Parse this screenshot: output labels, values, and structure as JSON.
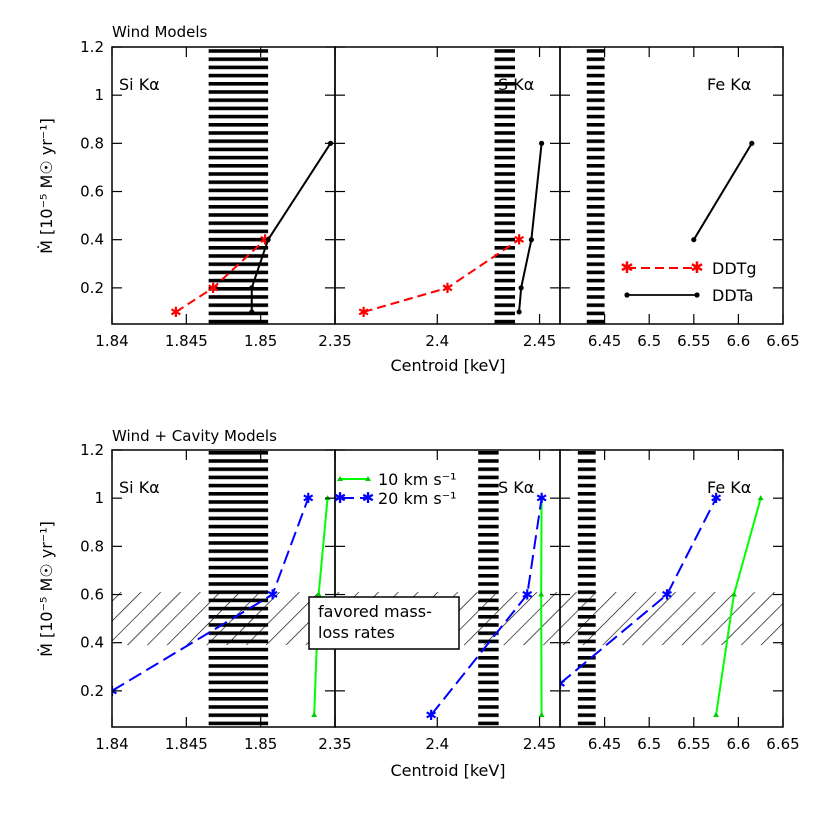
{
  "chart_data": [
    {
      "type": "line",
      "title": "Wind Models",
      "xlabel": "Centroid [keV]",
      "ylabel": "Ṁ [10⁻⁵ M☉ yr⁻¹]",
      "ylim": [
        0.05,
        1.2
      ],
      "yticks": [
        "0.2",
        "0.4",
        "0.6",
        "0.8",
        "1",
        "1.2"
      ],
      "yticks_values": [
        0.2,
        0.4,
        0.6,
        0.8,
        1.0,
        1.2
      ],
      "legend": [
        {
          "name": "DDTg",
          "color": "#ff0000",
          "style": "dashed",
          "marker": "asterisk"
        },
        {
          "name": "DDTa",
          "color": "#000000",
          "style": "solid",
          "marker": "dot"
        }
      ],
      "panels": [
        {
          "label": "Si Kα",
          "xlim": [
            1.84,
            1.855
          ],
          "xticks": [
            "1.84",
            "1.845",
            "1.85"
          ],
          "xticks_values": [
            1.84,
            1.845,
            1.85
          ],
          "observed_band": [
            1.8465,
            1.8505
          ],
          "series": [
            {
              "name": "DDTg",
              "x": [
                1.8443,
                1.8468,
                1.8503
              ],
              "y": [
                0.1,
                0.2,
                0.4
              ]
            },
            {
              "name": "DDTa",
              "x": [
                1.8494,
                1.8494,
                1.8505,
                1.8547
              ],
              "y": [
                0.1,
                0.2,
                0.4,
                0.8
              ]
            }
          ]
        },
        {
          "label": "S Kα",
          "xlim": [
            2.35,
            2.46
          ],
          "xticks": [
            "2.35",
            "2.4",
            "2.45"
          ],
          "xticks_values": [
            2.35,
            2.4,
            2.45
          ],
          "observed_band": [
            2.428,
            2.438
          ],
          "series": [
            {
              "name": "DDTg",
              "x": [
                2.364,
                2.405,
                2.44
              ],
              "y": [
                0.1,
                0.2,
                0.4
              ]
            },
            {
              "name": "DDTa",
              "x": [
                2.44,
                2.441,
                2.446,
                2.451
              ],
              "y": [
                0.1,
                0.2,
                0.4,
                0.8
              ]
            }
          ]
        },
        {
          "label": "Fe Kα",
          "xlim": [
            6.4,
            6.65
          ],
          "xticks": [
            "6.45",
            "6.5",
            "6.55",
            "6.6",
            "6.65"
          ],
          "xticks_values": [
            6.45,
            6.5,
            6.55,
            6.6,
            6.65
          ],
          "observed_band": [
            6.43,
            6.45
          ],
          "series": [
            {
              "name": "DDTa",
              "x": [
                6.55,
                6.615
              ],
              "y": [
                0.4,
                0.8
              ]
            }
          ]
        }
      ]
    },
    {
      "type": "line",
      "title": "Wind + Cavity Models",
      "xlabel": "Centroid [keV]",
      "ylabel": "Ṁ [10⁻⁵ M☉ yr⁻¹]",
      "ylim": [
        0.05,
        1.2
      ],
      "yticks": [
        "0.2",
        "0.4",
        "0.6",
        "0.8",
        "1",
        "1.2"
      ],
      "yticks_values": [
        0.2,
        0.4,
        0.6,
        0.8,
        1.0,
        1.2
      ],
      "legend": [
        {
          "name": "10 km s⁻¹",
          "color": "#00ff00",
          "style": "solid",
          "marker": "triangle"
        },
        {
          "name": "20 km s⁻¹",
          "color": "#0000ff",
          "style": "longdash",
          "marker": "asterisk"
        }
      ],
      "favored_region": {
        "label": "favored mass-\nloss rates",
        "y_range": [
          0.39,
          0.61
        ]
      },
      "panels": [
        {
          "label": "Si Kα",
          "xlim": [
            1.84,
            1.855
          ],
          "xticks": [
            "1.84",
            "1.845",
            "1.85"
          ],
          "xticks_values": [
            1.84,
            1.845,
            1.85
          ],
          "observed_band": [
            1.8465,
            1.8505
          ],
          "series": [
            {
              "name": "10 km s⁻¹",
              "x": [
                1.8536,
                1.8539,
                1.8545
              ],
              "y": [
                0.1,
                0.6,
                1.0
              ]
            },
            {
              "name": "20 km s⁻¹",
              "x": [
                1.84,
                1.8508,
                1.8532
              ],
              "y": [
                0.2,
                0.6,
                1.0
              ]
            }
          ]
        },
        {
          "label": "S Kα",
          "xlim": [
            2.35,
            2.46
          ],
          "xticks": [
            "2.35",
            "2.4",
            "2.45"
          ],
          "xticks_values": [
            2.35,
            2.4,
            2.45
          ],
          "observed_band": [
            2.42,
            2.43
          ],
          "series": [
            {
              "name": "10 km s⁻¹",
              "x": [
                2.451,
                2.4508,
                2.451
              ],
              "y": [
                0.1,
                0.6,
                1.0
              ]
            },
            {
              "name": "20 km s⁻¹",
              "x": [
                2.397,
                2.444,
                2.451
              ],
              "y": [
                0.1,
                0.6,
                1.0
              ]
            }
          ]
        },
        {
          "label": "Fe Kα",
          "xlim": [
            6.4,
            6.65
          ],
          "xticks": [
            "6.45",
            "6.5",
            "6.55",
            "6.6",
            "6.65"
          ],
          "xticks_values": [
            6.45,
            6.5,
            6.55,
            6.6,
            6.65
          ],
          "observed_band": [
            6.42,
            6.44
          ],
          "series": [
            {
              "name": "10 km s⁻¹",
              "x": [
                6.575,
                6.595,
                6.625
              ],
              "y": [
                0.1,
                0.6,
                1.0
              ]
            },
            {
              "name": "20 km s⁻¹",
              "x": [
                6.4,
                6.52,
                6.575
              ],
              "y": [
                0.23,
                0.6,
                1.0
              ]
            }
          ]
        }
      ]
    }
  ]
}
